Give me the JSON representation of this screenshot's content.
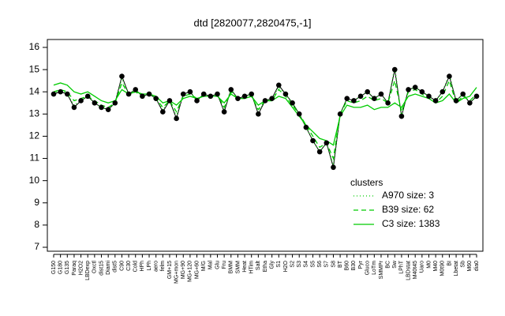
{
  "chart_data": {
    "type": "line",
    "title": "dtd [2820077,2820475,-1]",
    "categories": [
      "G150",
      "G180",
      "G135",
      "Paraq",
      "H2O2",
      "LBDexp",
      "Oxctl",
      "dist15",
      "Diami",
      "dist5",
      "C90",
      "C30",
      "Cold",
      "HPh",
      "LPh",
      "aero",
      "felm",
      "GM+15",
      "MG+mon",
      "MG+90",
      "MG+120",
      "MG+60",
      "M/G",
      "Mal",
      "Glu",
      "Fru",
      "BMM",
      "SMM",
      "Heat",
      "HTim",
      "Salt",
      "Etha",
      "Gly",
      "S1",
      "H2O",
      "S2",
      "S3",
      "S4",
      "S5",
      "S6",
      "S7",
      "S8",
      "BT",
      "B60",
      "B30",
      "Pyr",
      "Gluco",
      "LoTm",
      "SMMPr",
      "BC",
      "Sw",
      "LPhT",
      "LBDstat",
      "M40t45",
      "Uaro",
      "M0",
      "M40",
      "M0t90",
      "BI",
      "Lbetat",
      "Sb",
      "M60",
      "dia0"
    ],
    "values": [
      13.9,
      14.0,
      13.9,
      13.3,
      13.6,
      13.8,
      13.5,
      13.3,
      13.2,
      13.5,
      14.7,
      13.9,
      14.1,
      13.8,
      13.9,
      13.7,
      13.1,
      13.6,
      12.8,
      13.9,
      14.0,
      13.6,
      13.9,
      13.8,
      13.9,
      13.1,
      14.1,
      13.7,
      13.8,
      13.9,
      13.0,
      13.6,
      13.7,
      14.3,
      13.9,
      13.5,
      13.0,
      12.4,
      11.8,
      11.3,
      11.7,
      10.6,
      13.0,
      13.7,
      13.6,
      13.8,
      14.0,
      13.7,
      13.9,
      13.5,
      15.0,
      12.9,
      14.1,
      14.2,
      14.0,
      13.8,
      13.6,
      14.0,
      14.7,
      13.6,
      13.9,
      13.5,
      13.8
    ],
    "color": "#000000",
    "series": [
      {
        "name": "A970 size: 3",
        "color": "#00cc00",
        "dash": "dotted",
        "values": [
          13.9,
          14.1,
          13.9,
          13.4,
          13.6,
          13.8,
          13.5,
          13.3,
          13.2,
          13.5,
          14.6,
          13.9,
          14.1,
          13.8,
          13.9,
          13.7,
          13.2,
          13.6,
          12.9,
          13.9,
          14.0,
          13.6,
          13.9,
          13.8,
          13.9,
          13.2,
          14.1,
          13.7,
          13.8,
          13.9,
          13.1,
          13.6,
          13.7,
          14.2,
          13.9,
          13.5,
          13.0,
          12.4,
          11.8,
          11.3,
          11.7,
          10.7,
          13.0,
          13.7,
          13.6,
          13.8,
          14.0,
          13.7,
          13.9,
          13.5,
          15.1,
          12.9,
          14.1,
          14.2,
          14.0,
          13.8,
          13.6,
          14.0,
          14.8,
          13.6,
          13.9,
          13.5,
          13.8
        ]
      },
      {
        "name": "B39 size: 62",
        "color": "#00cc00",
        "dash": "dashed",
        "values": [
          14.0,
          14.1,
          14.0,
          13.6,
          13.7,
          13.8,
          13.6,
          13.4,
          13.3,
          13.5,
          14.4,
          13.9,
          14.0,
          13.8,
          13.9,
          13.7,
          13.3,
          13.6,
          13.1,
          13.8,
          13.9,
          13.7,
          13.8,
          13.8,
          13.9,
          13.3,
          14.0,
          13.7,
          13.7,
          13.8,
          13.2,
          13.6,
          13.6,
          14.1,
          13.8,
          13.4,
          13.0,
          12.5,
          12.0,
          11.5,
          11.7,
          11.0,
          13.0,
          13.6,
          13.5,
          13.6,
          13.8,
          13.6,
          13.7,
          13.5,
          14.5,
          13.1,
          14.0,
          14.1,
          13.9,
          13.7,
          13.5,
          13.8,
          14.5,
          13.5,
          13.8,
          13.6,
          13.9
        ]
      },
      {
        "name": "C3 size: 1383",
        "color": "#00cc00",
        "dash": "solid",
        "values": [
          14.3,
          14.4,
          14.3,
          14.0,
          13.9,
          14.0,
          13.8,
          13.6,
          13.5,
          13.6,
          14.1,
          13.9,
          14.0,
          13.9,
          13.9,
          13.8,
          13.5,
          13.6,
          13.4,
          13.7,
          13.8,
          13.7,
          13.8,
          13.8,
          13.8,
          13.5,
          13.9,
          13.7,
          13.7,
          13.8,
          13.4,
          13.6,
          13.6,
          13.8,
          13.7,
          13.3,
          12.9,
          12.5,
          12.2,
          11.9,
          11.8,
          11.6,
          12.9,
          13.4,
          13.3,
          13.3,
          13.4,
          13.2,
          13.3,
          13.3,
          13.5,
          13.3,
          13.8,
          13.9,
          13.8,
          13.7,
          13.5,
          13.6,
          13.9,
          13.5,
          13.7,
          13.8,
          14.2
        ]
      }
    ],
    "legend_title": "clusters",
    "legend": "bottom-right",
    "ylim": [
      7,
      16
    ],
    "yticks": [
      7,
      8,
      9,
      10,
      11,
      12,
      13,
      14,
      15,
      16
    ]
  }
}
